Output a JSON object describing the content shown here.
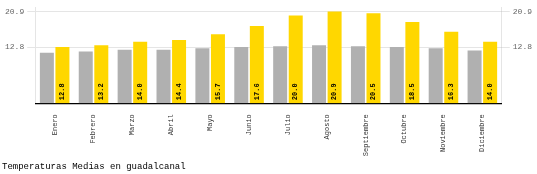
{
  "chart_data": {
    "type": "bar",
    "title": "Temperaturas Medias en guadalcanal",
    "categories": [
      "Enero",
      "Febrero",
      "Marzo",
      "Abril",
      "Mayo",
      "Junio",
      "Julio",
      "Agosto",
      "Septiembre",
      "Octubre",
      "Noviembre",
      "Diciembre"
    ],
    "series": [
      {
        "color": "#B0B0B0",
        "values": [
          11.5,
          11.8,
          12.2,
          12.2,
          12.5,
          12.8,
          13.0,
          13.2,
          13.0,
          12.8,
          12.5,
          12.0
        ]
      },
      {
        "color": "#FFD700",
        "values": [
          12.8,
          13.2,
          14.0,
          14.4,
          15.7,
          17.6,
          20.0,
          20.9,
          20.5,
          18.5,
          16.3,
          14.0
        ],
        "data_labels": true,
        "value_labels": [
          "12.8",
          "13.2",
          "14.0",
          "14.4",
          "15.7",
          "17.6",
          "20.0",
          "20.9",
          "20.5",
          "18.5",
          "16.3",
          "14.0"
        ]
      }
    ],
    "ylim": [
      0,
      21.736
    ],
    "yticks": [
      12.8,
      20.9
    ],
    "y2lim": [
      0,
      21.736
    ],
    "y2ticks": [
      12.8,
      20.9
    ],
    "grid": true,
    "legend": false
  }
}
